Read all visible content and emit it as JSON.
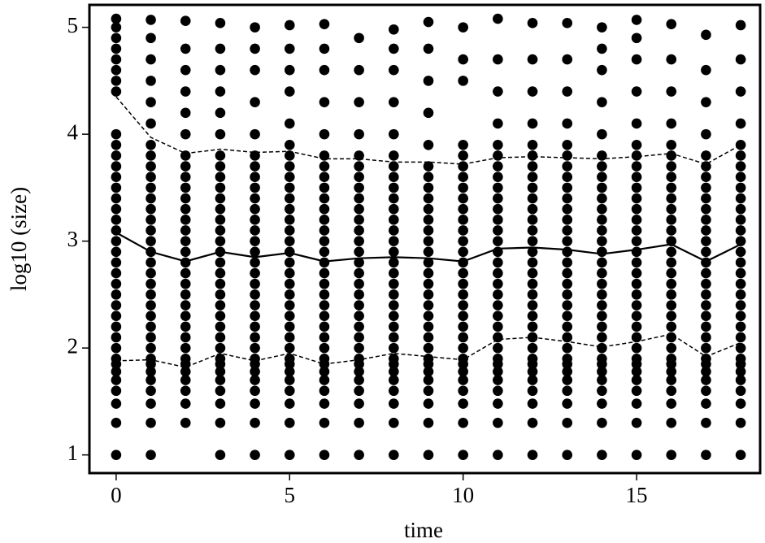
{
  "chart_data": {
    "type": "scatter",
    "x_label": "time",
    "y_label": "log10 (size)",
    "xlim": [
      -0.77,
      18.56
    ],
    "ylim": [
      0.83,
      5.21
    ],
    "xticks": [
      0,
      5,
      10,
      15
    ],
    "yticks": [
      1,
      2,
      3,
      4,
      5
    ],
    "grid": false,
    "color": "#000000",
    "points": [
      {
        "x": 0,
        "y": [
          1,
          1.3,
          1.48,
          1.6,
          1.7,
          1.78,
          1.85,
          1.9,
          2,
          2.1,
          2.2,
          2.3,
          2.4,
          2.5,
          2.6,
          2.7,
          2.8,
          2.9,
          3,
          3.1,
          3.2,
          3.3,
          3.4,
          3.5,
          3.6,
          3.7,
          3.8,
          3.9,
          4,
          4.4,
          4.5,
          4.6,
          4.7,
          4.8,
          4.9,
          5,
          5.08
        ]
      },
      {
        "x": 1,
        "y": [
          1,
          1.3,
          1.48,
          1.6,
          1.7,
          1.78,
          1.85,
          1.9,
          2,
          2.1,
          2.2,
          2.3,
          2.4,
          2.5,
          2.6,
          2.7,
          2.8,
          2.9,
          3,
          3.1,
          3.2,
          3.3,
          3.4,
          3.5,
          3.6,
          3.7,
          3.8,
          3.9,
          4.1,
          4.3,
          4.5,
          4.7,
          4.9,
          5.07
        ]
      },
      {
        "x": 2,
        "y": [
          1.3,
          1.48,
          1.6,
          1.7,
          1.78,
          1.85,
          1.9,
          2,
          2.1,
          2.2,
          2.3,
          2.4,
          2.5,
          2.6,
          2.7,
          2.8,
          2.9,
          3,
          3.1,
          3.2,
          3.3,
          3.4,
          3.5,
          3.6,
          3.7,
          3.8,
          4,
          4.2,
          4.4,
          4.6,
          4.8,
          5.06
        ]
      },
      {
        "x": 3,
        "y": [
          1,
          1.3,
          1.48,
          1.6,
          1.7,
          1.78,
          1.85,
          1.9,
          2,
          2.1,
          2.2,
          2.3,
          2.4,
          2.5,
          2.6,
          2.7,
          2.8,
          2.9,
          3,
          3.1,
          3.2,
          3.3,
          3.4,
          3.5,
          3.6,
          3.7,
          3.8,
          4,
          4.2,
          4.4,
          4.6,
          4.8,
          5.04
        ]
      },
      {
        "x": 4,
        "y": [
          1,
          1.3,
          1.48,
          1.6,
          1.7,
          1.78,
          1.85,
          1.9,
          2,
          2.1,
          2.2,
          2.3,
          2.4,
          2.5,
          2.6,
          2.7,
          2.8,
          2.9,
          3,
          3.1,
          3.2,
          3.3,
          3.4,
          3.5,
          3.6,
          3.7,
          3.8,
          4,
          4.3,
          4.6,
          4.8,
          5
        ]
      },
      {
        "x": 5,
        "y": [
          1,
          1.3,
          1.48,
          1.6,
          1.7,
          1.78,
          1.85,
          1.9,
          2,
          2.1,
          2.2,
          2.3,
          2.4,
          2.5,
          2.6,
          2.7,
          2.8,
          2.9,
          3,
          3.1,
          3.2,
          3.3,
          3.4,
          3.5,
          3.6,
          3.7,
          3.8,
          3.9,
          4.1,
          4.4,
          4.6,
          4.8,
          5.02
        ]
      },
      {
        "x": 6,
        "y": [
          1,
          1.3,
          1.48,
          1.6,
          1.7,
          1.78,
          1.85,
          1.9,
          2,
          2.1,
          2.2,
          2.3,
          2.4,
          2.5,
          2.6,
          2.7,
          2.8,
          2.9,
          3,
          3.1,
          3.2,
          3.3,
          3.4,
          3.5,
          3.6,
          3.7,
          3.8,
          4,
          4.3,
          4.6,
          4.8,
          5.03
        ]
      },
      {
        "x": 7,
        "y": [
          1,
          1.3,
          1.48,
          1.6,
          1.7,
          1.78,
          1.85,
          1.9,
          2,
          2.1,
          2.2,
          2.3,
          2.4,
          2.5,
          2.6,
          2.7,
          2.8,
          2.9,
          3,
          3.1,
          3.2,
          3.3,
          3.4,
          3.5,
          3.6,
          3.7,
          3.8,
          4,
          4.3,
          4.6,
          4.9
        ]
      },
      {
        "x": 8,
        "y": [
          1,
          1.3,
          1.48,
          1.6,
          1.7,
          1.78,
          1.85,
          1.9,
          2,
          2.1,
          2.2,
          2.3,
          2.4,
          2.5,
          2.6,
          2.7,
          2.8,
          2.9,
          3,
          3.1,
          3.2,
          3.3,
          3.4,
          3.5,
          3.6,
          3.7,
          3.8,
          4,
          4.3,
          4.6,
          4.8,
          4.98
        ]
      },
      {
        "x": 9,
        "y": [
          1,
          1.3,
          1.48,
          1.6,
          1.7,
          1.78,
          1.85,
          1.9,
          2,
          2.1,
          2.2,
          2.3,
          2.4,
          2.5,
          2.6,
          2.7,
          2.8,
          2.9,
          3,
          3.1,
          3.2,
          3.3,
          3.4,
          3.5,
          3.6,
          3.7,
          3.9,
          4.2,
          4.5,
          4.8,
          5.05
        ]
      },
      {
        "x": 10,
        "y": [
          1,
          1.3,
          1.48,
          1.6,
          1.7,
          1.78,
          1.85,
          1.9,
          2,
          2.1,
          2.2,
          2.3,
          2.4,
          2.5,
          2.6,
          2.7,
          2.8,
          2.9,
          3,
          3.1,
          3.2,
          3.3,
          3.4,
          3.5,
          3.6,
          3.7,
          3.8,
          3.9,
          4.5,
          4.7,
          5
        ]
      },
      {
        "x": 11,
        "y": [
          1,
          1.3,
          1.48,
          1.6,
          1.7,
          1.78,
          1.85,
          1.9,
          2,
          2.1,
          2.2,
          2.3,
          2.4,
          2.5,
          2.6,
          2.7,
          2.8,
          2.9,
          3,
          3.1,
          3.2,
          3.3,
          3.4,
          3.5,
          3.6,
          3.7,
          3.8,
          3.9,
          4.1,
          4.4,
          4.7,
          5.08
        ]
      },
      {
        "x": 12,
        "y": [
          1,
          1.3,
          1.48,
          1.6,
          1.7,
          1.78,
          1.85,
          1.9,
          2,
          2.1,
          2.2,
          2.3,
          2.4,
          2.5,
          2.6,
          2.7,
          2.8,
          2.9,
          3,
          3.1,
          3.2,
          3.3,
          3.4,
          3.5,
          3.6,
          3.7,
          3.8,
          3.9,
          4.1,
          4.4,
          4.7,
          5.04
        ]
      },
      {
        "x": 13,
        "y": [
          1,
          1.3,
          1.48,
          1.6,
          1.7,
          1.78,
          1.85,
          1.9,
          2,
          2.1,
          2.2,
          2.3,
          2.4,
          2.5,
          2.6,
          2.7,
          2.8,
          2.9,
          3,
          3.1,
          3.2,
          3.3,
          3.4,
          3.5,
          3.6,
          3.7,
          3.8,
          3.9,
          4.1,
          4.4,
          4.7,
          5.04
        ]
      },
      {
        "x": 14,
        "y": [
          1,
          1.3,
          1.48,
          1.6,
          1.7,
          1.78,
          1.85,
          1.9,
          2,
          2.1,
          2.2,
          2.3,
          2.4,
          2.5,
          2.6,
          2.7,
          2.8,
          2.9,
          3,
          3.1,
          3.2,
          3.3,
          3.4,
          3.5,
          3.6,
          3.7,
          3.8,
          4,
          4.3,
          4.6,
          4.8,
          5
        ]
      },
      {
        "x": 15,
        "y": [
          1,
          1.3,
          1.48,
          1.6,
          1.7,
          1.78,
          1.85,
          1.9,
          2,
          2.1,
          2.2,
          2.3,
          2.4,
          2.5,
          2.6,
          2.7,
          2.8,
          2.9,
          3,
          3.1,
          3.2,
          3.3,
          3.4,
          3.5,
          3.6,
          3.7,
          3.8,
          3.9,
          4.1,
          4.4,
          4.7,
          4.9,
          5.07
        ]
      },
      {
        "x": 16,
        "y": [
          1,
          1.3,
          1.48,
          1.6,
          1.7,
          1.78,
          1.85,
          1.9,
          2,
          2.1,
          2.2,
          2.3,
          2.4,
          2.5,
          2.6,
          2.7,
          2.8,
          2.9,
          3,
          3.1,
          3.2,
          3.3,
          3.4,
          3.5,
          3.6,
          3.7,
          3.8,
          3.9,
          4.1,
          4.4,
          4.7,
          5.03
        ]
      },
      {
        "x": 17,
        "y": [
          1,
          1.3,
          1.48,
          1.6,
          1.7,
          1.78,
          1.85,
          1.9,
          2,
          2.1,
          2.2,
          2.3,
          2.4,
          2.5,
          2.6,
          2.7,
          2.8,
          2.9,
          3,
          3.1,
          3.2,
          3.3,
          3.4,
          3.5,
          3.6,
          3.7,
          3.8,
          4,
          4.3,
          4.6,
          4.93
        ]
      },
      {
        "x": 18,
        "y": [
          1,
          1.3,
          1.48,
          1.6,
          1.7,
          1.78,
          1.85,
          1.9,
          2,
          2.1,
          2.2,
          2.3,
          2.4,
          2.5,
          2.6,
          2.7,
          2.8,
          2.9,
          3,
          3.1,
          3.2,
          3.3,
          3.4,
          3.5,
          3.6,
          3.7,
          3.8,
          3.9,
          4.1,
          4.4,
          4.7,
          5.02
        ]
      }
    ],
    "lines": {
      "x": [
        0,
        1,
        2,
        3,
        4,
        5,
        6,
        7,
        8,
        9,
        10,
        11,
        12,
        13,
        14,
        15,
        16,
        17,
        18
      ],
      "series": [
        {
          "style": "solid",
          "values": [
            3.08,
            2.9,
            2.81,
            2.9,
            2.85,
            2.89,
            2.81,
            2.84,
            2.85,
            2.84,
            2.81,
            2.93,
            2.94,
            2.92,
            2.88,
            2.92,
            2.97,
            2.81,
            2.97
          ]
        },
        {
          "style": "dashed",
          "values": [
            4.35,
            3.97,
            3.82,
            3.86,
            3.83,
            3.84,
            3.77,
            3.77,
            3.74,
            3.74,
            3.72,
            3.78,
            3.79,
            3.78,
            3.77,
            3.79,
            3.82,
            3.72,
            3.9
          ]
        },
        {
          "style": "dashed",
          "values": [
            1.88,
            1.89,
            1.82,
            1.95,
            1.88,
            1.95,
            1.85,
            1.89,
            1.95,
            1.92,
            1.89,
            2.08,
            2.1,
            2.06,
            2.01,
            2.06,
            2.13,
            1.92,
            2.05
          ]
        }
      ]
    }
  }
}
